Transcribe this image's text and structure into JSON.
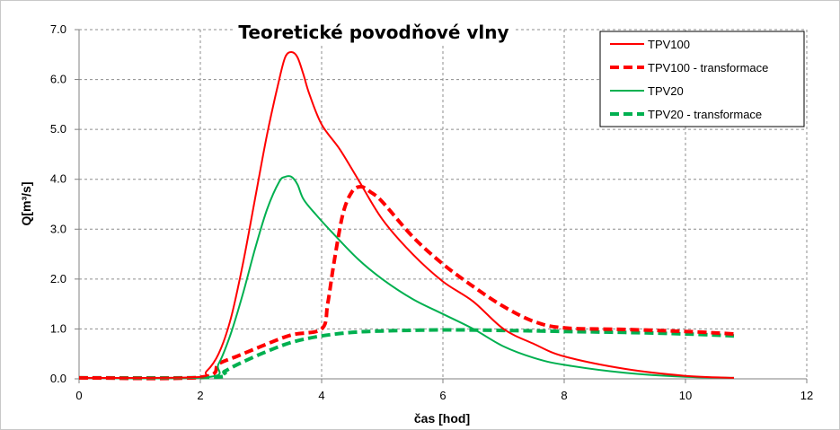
{
  "chart_data": {
    "type": "line",
    "title": "Teoretické povodňové vlny",
    "xlabel": "čas [hod]",
    "ylabel": "Q[m³/s]",
    "xlim": [
      0,
      12
    ],
    "ylim": [
      0,
      7
    ],
    "x_ticks": [
      "0",
      "2",
      "4",
      "6",
      "8",
      "10",
      "12"
    ],
    "y_ticks": [
      "0.0",
      "1.0",
      "2.0",
      "3.0",
      "4.0",
      "5.0",
      "6.0",
      "7.0"
    ],
    "grid": true,
    "legend_position": "top-right",
    "series": [
      {
        "name": "TPV100",
        "color": "#ff0000",
        "style": "solid",
        "x": [
          0,
          1.9,
          2.1,
          2.3,
          2.5,
          2.7,
          2.9,
          3.1,
          3.3,
          3.4,
          3.5,
          3.6,
          3.7,
          3.8,
          4.0,
          4.3,
          4.6,
          5.0,
          5.5,
          6.0,
          6.5,
          7.0,
          7.5,
          8.0,
          9.0,
          10.0,
          10.8
        ],
        "y": [
          0.02,
          0.03,
          0.15,
          0.5,
          1.2,
          2.3,
          3.6,
          4.9,
          6.0,
          6.45,
          6.55,
          6.45,
          6.1,
          5.7,
          5.1,
          4.6,
          4.0,
          3.2,
          2.5,
          1.95,
          1.55,
          1.0,
          0.7,
          0.45,
          0.2,
          0.06,
          0.02
        ]
      },
      {
        "name": "TPV100 - transformace",
        "color": "#ff0000",
        "style": "dashed",
        "x": [
          0,
          2.0,
          2.3,
          2.6,
          3.0,
          3.5,
          4.0,
          4.1,
          4.2,
          4.35,
          4.5,
          4.65,
          4.8,
          5.0,
          5.5,
          6.0,
          6.5,
          7.0,
          7.5,
          8.0,
          9.0,
          10.0,
          10.8
        ],
        "y": [
          0.02,
          0.03,
          0.3,
          0.45,
          0.65,
          0.88,
          1.0,
          1.5,
          2.3,
          3.3,
          3.75,
          3.85,
          3.75,
          3.55,
          2.85,
          2.3,
          1.85,
          1.45,
          1.15,
          1.02,
          0.99,
          0.95,
          0.9
        ]
      },
      {
        "name": "TPV20",
        "color": "#00b050",
        "style": "solid",
        "x": [
          0,
          2.1,
          2.3,
          2.5,
          2.7,
          2.9,
          3.1,
          3.3,
          3.4,
          3.5,
          3.6,
          3.7,
          3.9,
          4.2,
          4.6,
          5.0,
          5.5,
          6.0,
          6.5,
          7.0,
          7.5,
          8.0,
          9.0,
          10.0,
          10.8
        ],
        "y": [
          0.02,
          0.03,
          0.3,
          0.9,
          1.7,
          2.6,
          3.4,
          3.95,
          4.05,
          4.05,
          3.9,
          3.6,
          3.3,
          2.9,
          2.4,
          2.0,
          1.6,
          1.3,
          1.0,
          0.65,
          0.42,
          0.28,
          0.12,
          0.04,
          0.02
        ]
      },
      {
        "name": "TPV20 - transformace",
        "color": "#00b050",
        "style": "dashed",
        "x": [
          0,
          2.2,
          2.4,
          2.6,
          3.0,
          3.5,
          4.0,
          4.5,
          5.0,
          6.0,
          7.0,
          8.0,
          9.0,
          10.0,
          10.8
        ],
        "y": [
          0.02,
          0.03,
          0.15,
          0.28,
          0.5,
          0.73,
          0.86,
          0.93,
          0.96,
          0.98,
          0.97,
          0.95,
          0.93,
          0.9,
          0.86
        ]
      }
    ]
  }
}
